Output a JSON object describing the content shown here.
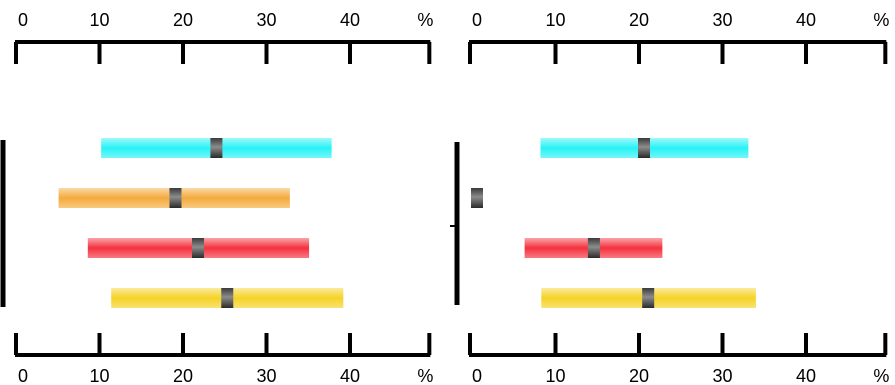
{
  "chart_data": [
    {
      "type": "bar",
      "panel": "left",
      "orientation": "horizontal-range",
      "xlim": [
        0,
        50
      ],
      "xticks": [
        "0",
        "10",
        "20",
        "30",
        "40"
      ],
      "unit_label": "%",
      "series": [
        {
          "color": "#28f2f6",
          "start": 10.2,
          "end": 37.8,
          "marker": 24.0
        },
        {
          "color": "#f4ab3c",
          "start": 5.1,
          "end": 32.8,
          "marker": 19.1
        },
        {
          "color": "#f4323e",
          "start": 8.6,
          "end": 35.1,
          "marker": 21.8
        },
        {
          "color": "#f5d226",
          "start": 11.4,
          "end": 39.2,
          "marker": 25.3
        }
      ],
      "grid": false,
      "axes": "top and bottom"
    },
    {
      "type": "bar",
      "panel": "right",
      "orientation": "horizontal-range",
      "xlim": [
        0,
        50
      ],
      "xticks": [
        "0",
        "10",
        "20",
        "30",
        "40"
      ],
      "unit_label": "%",
      "series": [
        {
          "color": "#28f2f6",
          "start": 8.2,
          "end": 33.1,
          "marker": 20.6
        },
        {
          "color": "#9a9a9a",
          "start": 0.0,
          "end": 1.2,
          "marker": 0.6
        },
        {
          "color": "#f4323e",
          "start": 6.3,
          "end": 22.8,
          "marker": 14.6
        },
        {
          "color": "#f5d226",
          "start": 8.3,
          "end": 34.0,
          "marker": 21.1
        }
      ],
      "grid": false,
      "axes": "top and bottom"
    }
  ]
}
